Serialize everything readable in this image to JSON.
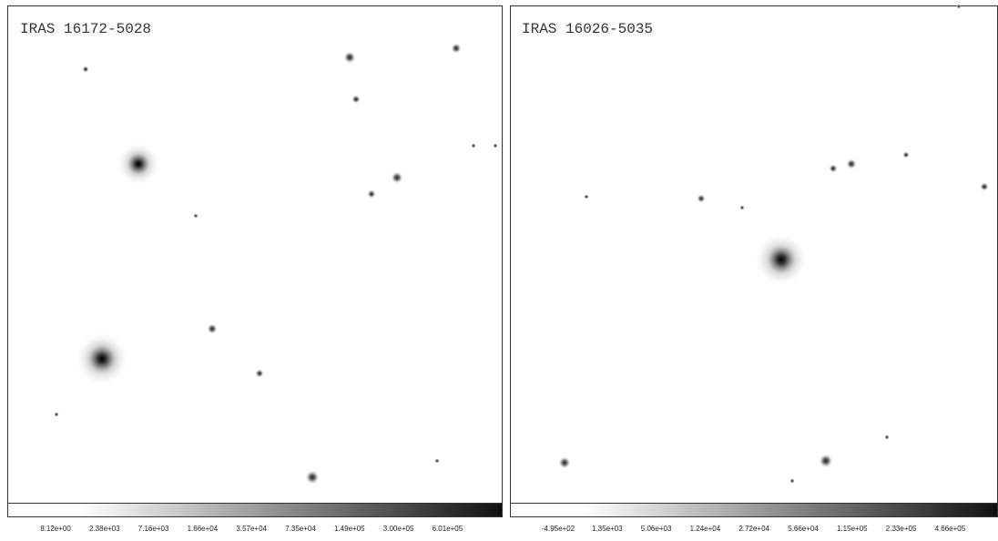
{
  "panels": [
    {
      "title": "IRAS 16172-5028",
      "colorbar_labels": [
        "8.12e+00",
        "2.38e+03",
        "7.16e+03",
        "1.66e+04",
        "3.57e+04",
        "7.35e+04",
        "1.49e+05",
        "3.00e+05",
        "6.01e+05"
      ]
    },
    {
      "title": "IRAS 16026-5035",
      "colorbar_labels": [
        "-4.95e+02",
        "1.35e+03",
        "5.06e+03",
        "1.24e+04",
        "2.72e+04",
        "5.66e+04",
        "1.15e+05",
        "2.33e+05",
        "4.66e+05"
      ]
    }
  ]
}
